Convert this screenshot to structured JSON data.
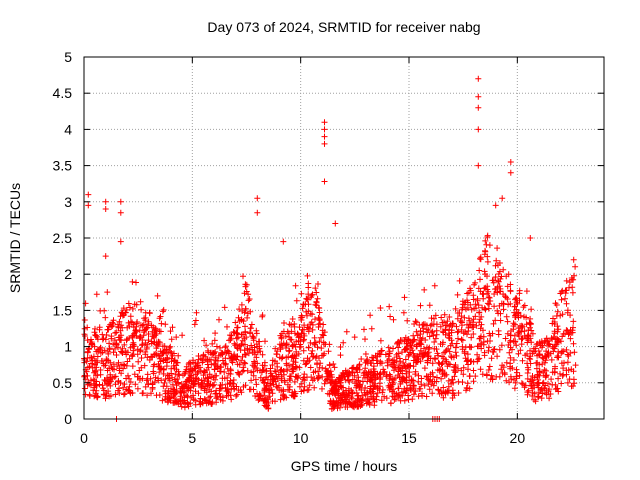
{
  "chart_data": {
    "type": "scatter",
    "title": "Day 073 of 2024, SRMTID for receiver nabg",
    "xlabel": "GPS time / hours",
    "ylabel": "SRMTID / TECUs",
    "xlim": [
      0,
      24.0
    ],
    "ylim": [
      0,
      5
    ],
    "x_ticks": [
      0,
      5,
      10,
      15,
      20
    ],
    "y_ticks": [
      0,
      0.5,
      1,
      1.5,
      2,
      2.5,
      3,
      3.5,
      4,
      4.5,
      5
    ],
    "x_tick_labels": [
      "0",
      "5",
      "10",
      "15",
      "20"
    ],
    "y_tick_labels": [
      "0",
      "0.5",
      "1",
      "1.5",
      "2",
      "2.5",
      "3",
      "3.5",
      "4",
      "4.5",
      "5"
    ],
    "grid": true,
    "marker": "+",
    "color": "#ff0000",
    "series": [
      {
        "name": "SRMTID",
        "x_range_hours": [
          0,
          22.7
        ],
        "typical_level": 0.7,
        "notable_points": [
          {
            "x": 0.2,
            "y": 3.1
          },
          {
            "x": 0.2,
            "y": 2.95
          },
          {
            "x": 1.0,
            "y": 3.0
          },
          {
            "x": 1.0,
            "y": 2.9
          },
          {
            "x": 1.7,
            "y": 3.0
          },
          {
            "x": 1.7,
            "y": 2.85
          },
          {
            "x": 1.0,
            "y": 2.25
          },
          {
            "x": 1.7,
            "y": 2.45
          },
          {
            "x": 8.0,
            "y": 3.05
          },
          {
            "x": 8.0,
            "y": 2.85
          },
          {
            "x": 9.2,
            "y": 2.45
          },
          {
            "x": 11.1,
            "y": 4.1
          },
          {
            "x": 11.1,
            "y": 4.0
          },
          {
            "x": 11.1,
            "y": 3.9
          },
          {
            "x": 11.1,
            "y": 3.8
          },
          {
            "x": 11.1,
            "y": 3.28
          },
          {
            "x": 11.6,
            "y": 2.7
          },
          {
            "x": 18.2,
            "y": 4.7
          },
          {
            "x": 18.2,
            "y": 4.45
          },
          {
            "x": 18.2,
            "y": 4.3
          },
          {
            "x": 18.2,
            "y": 4.0
          },
          {
            "x": 18.2,
            "y": 3.5
          },
          {
            "x": 19.7,
            "y": 3.55
          },
          {
            "x": 19.7,
            "y": 3.4
          },
          {
            "x": 19.3,
            "y": 3.05
          },
          {
            "x": 19.0,
            "y": 2.95
          },
          {
            "x": 20.6,
            "y": 2.5
          },
          {
            "x": 22.6,
            "y": 2.2
          }
        ],
        "base_profile": [
          {
            "x": 0.0,
            "y": 0.8
          },
          {
            "x": 1.0,
            "y": 0.75
          },
          {
            "x": 2.0,
            "y": 1.0
          },
          {
            "x": 3.0,
            "y": 0.9
          },
          {
            "x": 4.0,
            "y": 0.6
          },
          {
            "x": 4.5,
            "y": 0.4
          },
          {
            "x": 5.0,
            "y": 0.5
          },
          {
            "x": 6.0,
            "y": 0.6
          },
          {
            "x": 7.0,
            "y": 0.8
          },
          {
            "x": 7.5,
            "y": 1.2
          },
          {
            "x": 8.0,
            "y": 0.7
          },
          {
            "x": 8.5,
            "y": 0.4
          },
          {
            "x": 9.0,
            "y": 0.7
          },
          {
            "x": 10.0,
            "y": 0.9
          },
          {
            "x": 10.5,
            "y": 1.2
          },
          {
            "x": 11.0,
            "y": 0.9
          },
          {
            "x": 11.5,
            "y": 0.3
          },
          {
            "x": 12.0,
            "y": 0.4
          },
          {
            "x": 13.0,
            "y": 0.5
          },
          {
            "x": 14.0,
            "y": 0.6
          },
          {
            "x": 15.0,
            "y": 0.7
          },
          {
            "x": 16.0,
            "y": 0.9
          },
          {
            "x": 17.0,
            "y": 0.8
          },
          {
            "x": 18.0,
            "y": 1.2
          },
          {
            "x": 18.5,
            "y": 1.6
          },
          {
            "x": 19.0,
            "y": 1.5
          },
          {
            "x": 19.5,
            "y": 1.2
          },
          {
            "x": 20.0,
            "y": 1.0
          },
          {
            "x": 20.5,
            "y": 0.9
          },
          {
            "x": 21.0,
            "y": 0.6
          },
          {
            "x": 21.5,
            "y": 0.8
          },
          {
            "x": 22.0,
            "y": 1.1
          },
          {
            "x": 22.7,
            "y": 1.3
          }
        ],
        "zero_points": [
          {
            "x": 1.5,
            "y": 0.0
          },
          {
            "x": 16.1,
            "y": 0.0
          },
          {
            "x": 16.2,
            "y": 0.0
          },
          {
            "x": 16.3,
            "y": 0.0
          },
          {
            "x": 16.4,
            "y": 0.0
          }
        ]
      }
    ]
  }
}
